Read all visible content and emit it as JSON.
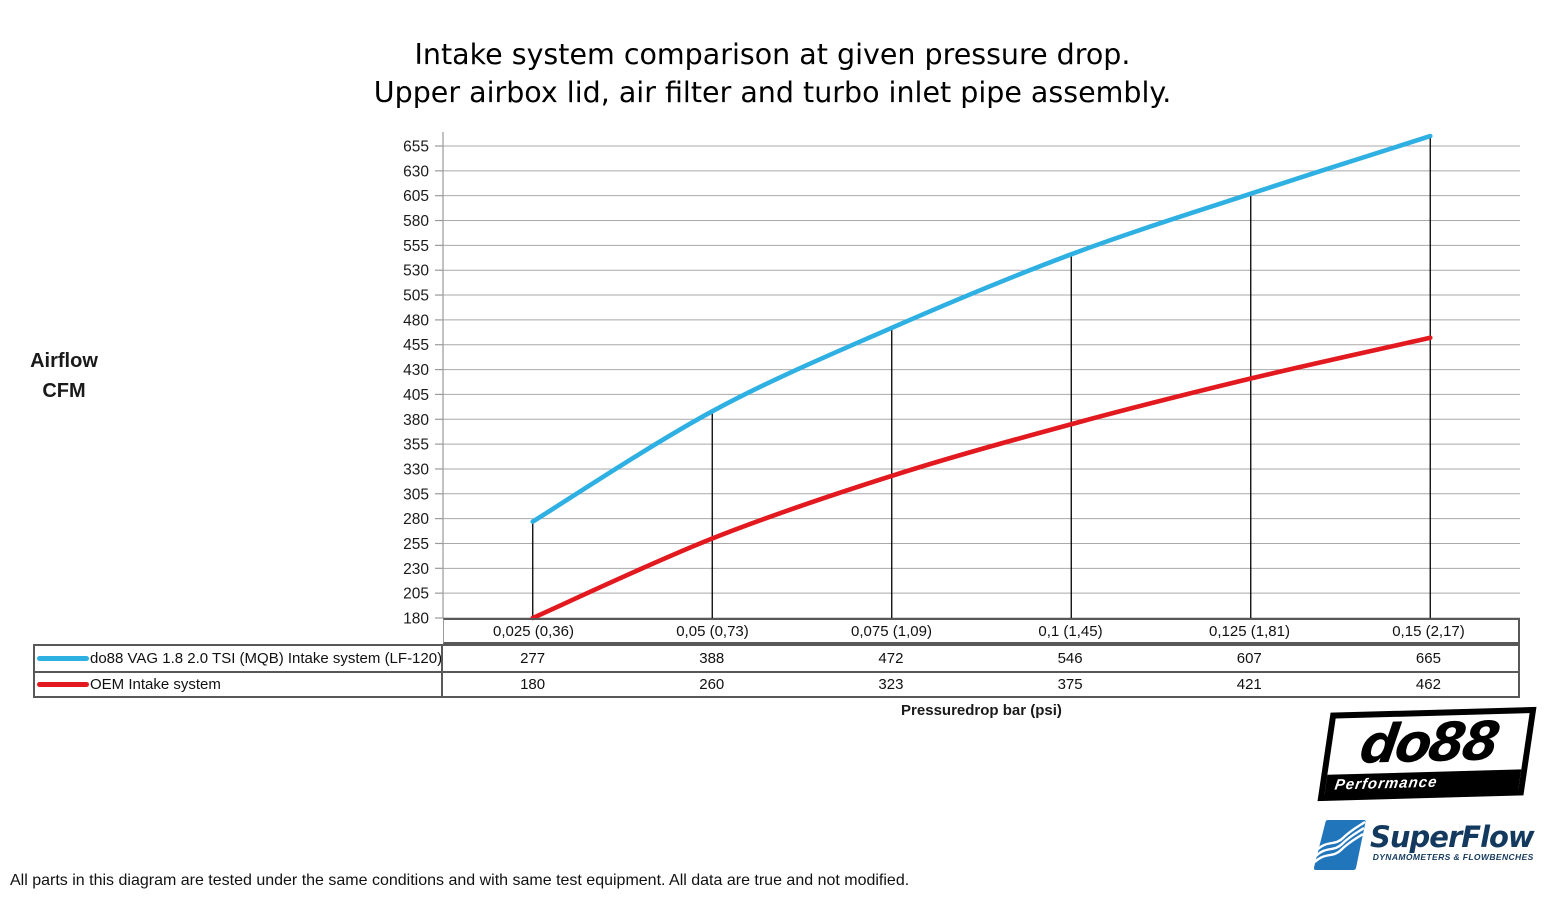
{
  "title": {
    "line1": "Intake system comparison at given pressure drop.",
    "line2": "Upper airbox lid, air filter and turbo inlet pipe assembly."
  },
  "y_axis_title": {
    "line1": "Airflow",
    "line2": "CFM"
  },
  "x_axis_title": "Pressuredrop bar (psi)",
  "footer_note": "All parts in this diagram are tested under the same conditions and with same test equipment. All data are true and not modified.",
  "chart_data": {
    "type": "line",
    "title": "Intake system comparison at given pressure drop. Upper airbox lid, air filter and turbo inlet pipe assembly.",
    "xlabel": "Pressuredrop bar (psi)",
    "ylabel": "Airflow CFM",
    "categories": [
      "0,025 (0,36)",
      "0,05 (0,73)",
      "0,075 (1,09)",
      "0,1 (1,45)",
      "0,125 (1,81)",
      "0,15 (2,17)"
    ],
    "series": [
      {
        "name": "do88 VAG 1.8 2.0 TSI (MQB) Intake system (LF-120)",
        "color": "#2fb0e2",
        "values": [
          277,
          388,
          472,
          546,
          607,
          665
        ]
      },
      {
        "name": "OEM Intake system",
        "color": "#e2191f",
        "values": [
          180,
          260,
          323,
          375,
          421,
          462
        ]
      }
    ],
    "ylim": [
      180,
      655
    ],
    "ytick_step": 25,
    "grid": "horizontal gridlines at every 25 CFM",
    "drop_lines": "vertical black line from x-axis up to first series at each category",
    "legend_position": "table rows left of data table",
    "colors": {
      "gridline": "#a9a9a9",
      "axis": "#9a9a9a",
      "drop_line": "#000000",
      "table_border": "#585858"
    }
  },
  "logos": {
    "do88": {
      "word": "do88",
      "band": "Performance"
    },
    "superflow": {
      "name": "SuperFlow",
      "subtitle": "DYNAMOMETERS & FLOWBENCHES"
    }
  }
}
